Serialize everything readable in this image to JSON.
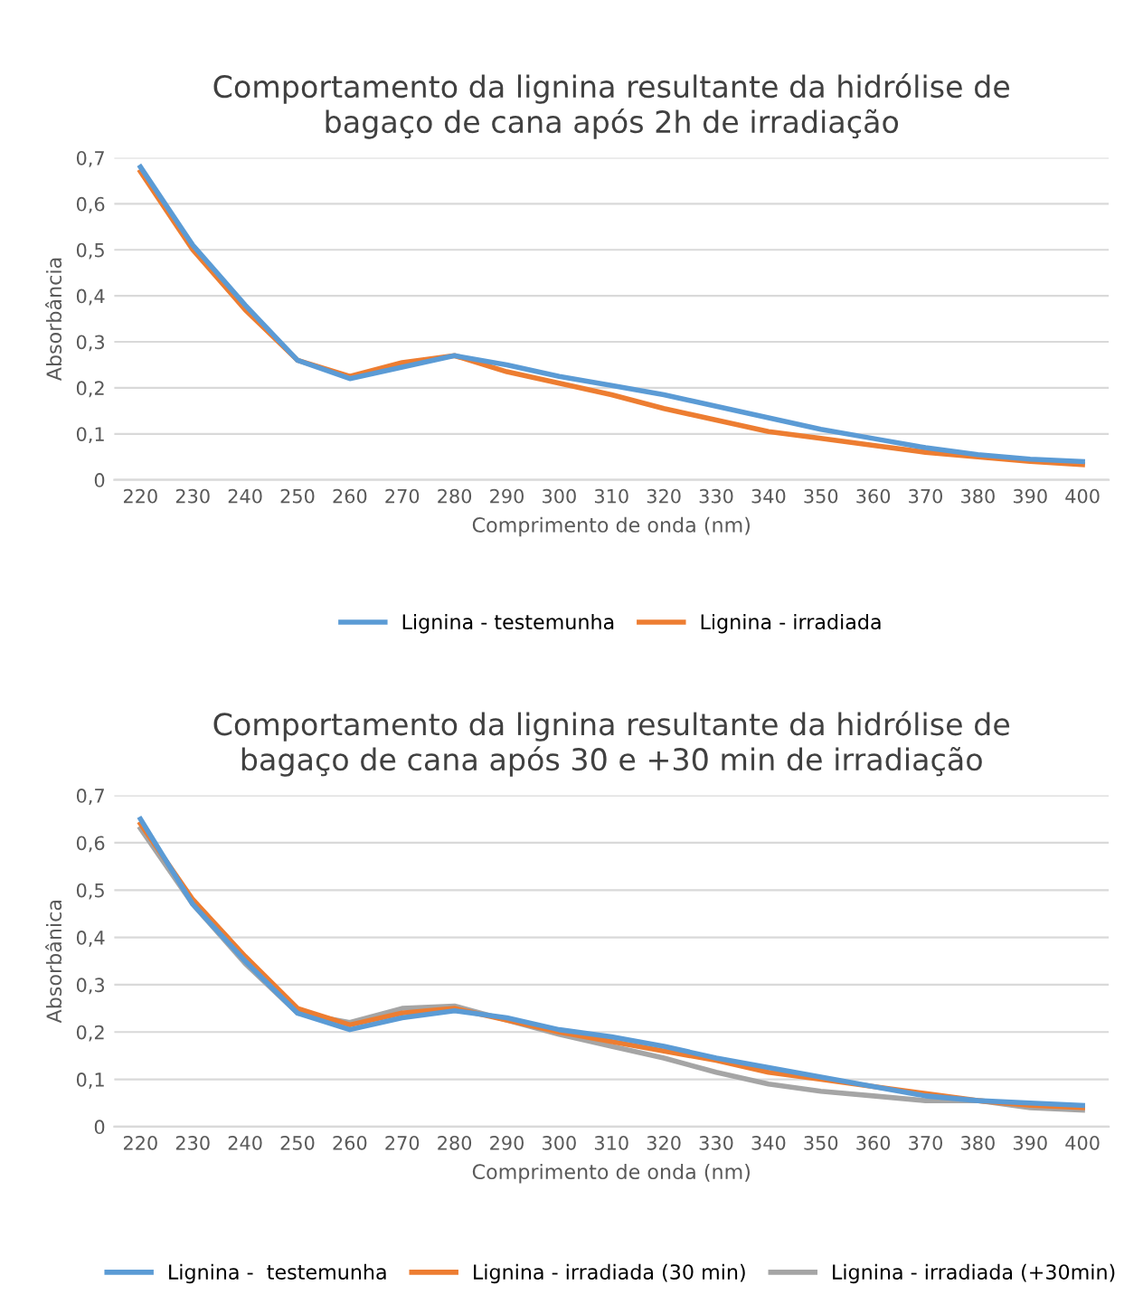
{
  "chart_data": [
    {
      "type": "line",
      "title": "Comportamento da lignina resultante da hidrólise de\nbagaço de cana após 2h de irradiação",
      "xlabel": "Comprimento de onda (nm)",
      "ylabel": "Absorbância",
      "categories": [
        "220",
        "230",
        "240",
        "250",
        "260",
        "270",
        "280",
        "290",
        "300",
        "310",
        "320",
        "330",
        "340",
        "350",
        "360",
        "370",
        "380",
        "390",
        "400"
      ],
      "series": [
        {
          "name": "Lignina - testemunha",
          "color": "#5b9bd5",
          "values": [
            0.68,
            0.51,
            0.38,
            0.26,
            0.22,
            0.245,
            0.27,
            0.25,
            0.225,
            0.205,
            0.185,
            0.16,
            0.135,
            0.11,
            0.09,
            0.07,
            0.055,
            0.045,
            0.04
          ]
        },
        {
          "name": "Lignina - irradiada",
          "color": "#ed7d31",
          "values": [
            0.67,
            0.5,
            0.37,
            0.26,
            0.225,
            0.255,
            0.27,
            0.235,
            0.21,
            0.185,
            0.155,
            0.13,
            0.105,
            0.09,
            0.075,
            0.06,
            0.05,
            0.04,
            0.033
          ]
        }
      ],
      "ylim": [
        0,
        0.7
      ],
      "yticks": [
        {
          "value": 0,
          "label": "0"
        },
        {
          "value": 0.1,
          "label": "0,1"
        },
        {
          "value": 0.2,
          "label": "0,2"
        },
        {
          "value": 0.3,
          "label": "0,3"
        },
        {
          "value": 0.4,
          "label": "0,4"
        },
        {
          "value": 0.5,
          "label": "0,5"
        },
        {
          "value": 0.6,
          "label": "0,6"
        },
        {
          "value": 0.7,
          "label": "0,7"
        }
      ],
      "grid": "y",
      "legend": "bottom",
      "marker": "none",
      "line_style": "solid"
    },
    {
      "type": "line",
      "title": "Comportamento da lignina resultante da hidrólise de\nbagaço de cana após 30 e +30 min de irradiação",
      "xlabel": "Comprimento de onda (nm)",
      "ylabel": "Absorbânica",
      "categories": [
        "220",
        "230",
        "240",
        "250",
        "260",
        "270",
        "280",
        "290",
        "300",
        "310",
        "320",
        "330",
        "340",
        "350",
        "360",
        "370",
        "380",
        "390",
        "400"
      ],
      "series": [
        {
          "name": "Lignina -  testemunha",
          "color": "#5b9bd5",
          "values": [
            0.65,
            0.47,
            0.35,
            0.24,
            0.205,
            0.23,
            0.245,
            0.23,
            0.205,
            0.19,
            0.17,
            0.145,
            0.125,
            0.105,
            0.085,
            0.065,
            0.055,
            0.05,
            0.045
          ]
        },
        {
          "name": "Lignina - irradiada (30 min)",
          "color": "#ed7d31",
          "values": [
            0.64,
            0.48,
            0.36,
            0.25,
            0.215,
            0.24,
            0.25,
            0.225,
            0.2,
            0.18,
            0.16,
            0.14,
            0.115,
            0.1,
            0.085,
            0.07,
            0.055,
            0.045,
            0.04
          ]
        },
        {
          "name": "Lignina - irradiada (+30min)",
          "color": "#a5a5a5",
          "values": [
            0.63,
            0.47,
            0.345,
            0.24,
            0.22,
            0.25,
            0.255,
            0.225,
            0.195,
            0.17,
            0.145,
            0.115,
            0.09,
            0.075,
            0.065,
            0.055,
            0.055,
            0.04,
            0.035
          ]
        }
      ],
      "ylim": [
        0,
        0.7
      ],
      "yticks": [
        {
          "value": 0,
          "label": "0"
        },
        {
          "value": 0.1,
          "label": "0,1"
        },
        {
          "value": 0.2,
          "label": "0,2"
        },
        {
          "value": 0.3,
          "label": "0,3"
        },
        {
          "value": 0.4,
          "label": "0,4"
        },
        {
          "value": 0.5,
          "label": "0,5"
        },
        {
          "value": 0.6,
          "label": "0,6"
        },
        {
          "value": 0.7,
          "label": "0,7"
        }
      ],
      "grid": "y",
      "legend": "bottom",
      "marker": "none",
      "line_style": "solid"
    }
  ]
}
